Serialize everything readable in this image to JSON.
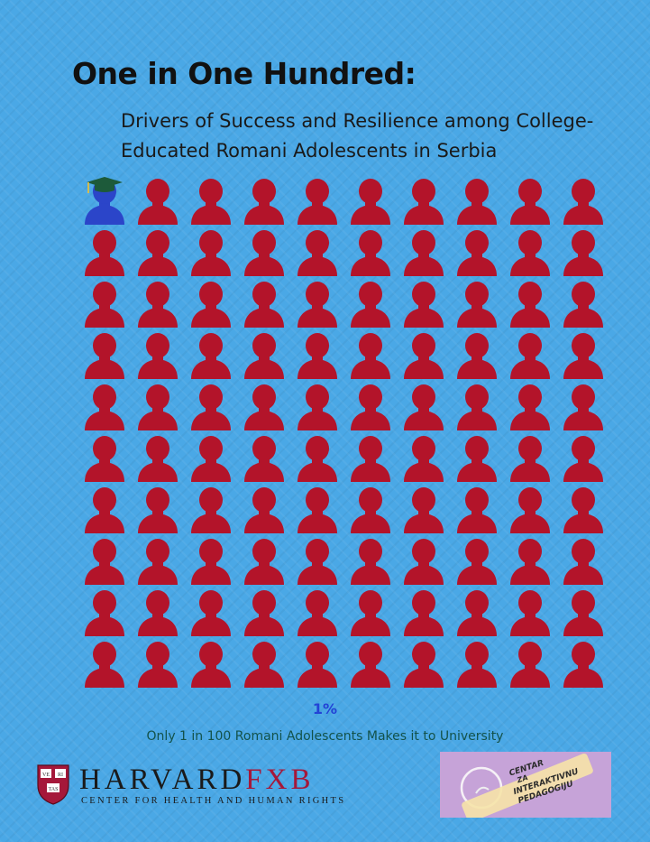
{
  "header": {
    "title": "One in One Hundred:",
    "subtitle": "Drivers of Success and Resilience among College-Educated Romani Adolescents in Serbia"
  },
  "figure": {
    "total": 100,
    "highlighted": 1,
    "highlight_color": "#2b45c9",
    "base_color": "#b3142a",
    "cap_color": "#1d5a3a",
    "highlight_icon": "graduate-person-icon",
    "base_icon": "person-icon"
  },
  "stats": {
    "percent": "1%",
    "caption": "Only 1 in 100 Romani Adolescents Makes it to University"
  },
  "footer": {
    "harvard_word": "HARVARD",
    "fxb_word": "FXB",
    "harvard_tagline": "CENTER FOR HEALTH AND HUMAN RIGHTS",
    "harvard_brand_color": "#a5183a",
    "shield_motto": [
      "VE",
      "RI",
      "TAS"
    ],
    "cip_logo_text": [
      "CENTAR",
      "ZA",
      "INTERAKTIVNU",
      "PEDAGOGIJU"
    ],
    "cip_background": "#c6a3d8"
  }
}
